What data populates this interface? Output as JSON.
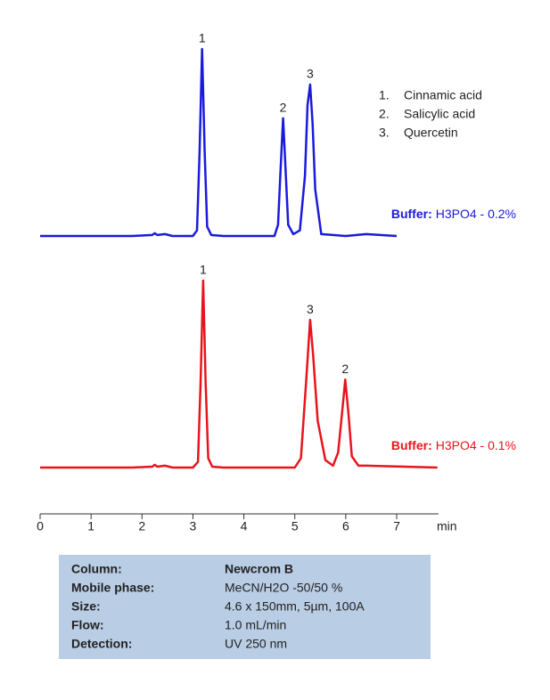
{
  "chart_data": {
    "type": "line",
    "xlabel": "min",
    "xlim": [
      0,
      7.8
    ],
    "xticks": [
      0,
      1,
      2,
      3,
      4,
      5,
      6,
      7
    ],
    "ylim": [
      0,
      100
    ],
    "legend": [
      {
        "number": "1.",
        "name": "Cinnamic acid"
      },
      {
        "number": "2.",
        "name": "Salicylic acid"
      },
      {
        "number": "3.",
        "name": "Quercetin"
      }
    ],
    "series": [
      {
        "buffer_label": "Buffer:",
        "name": "H3PO4 - 0.2%",
        "color": "#1a1adc",
        "x": [
          0,
          1.8,
          2.2,
          2.25,
          2.3,
          2.45,
          2.6,
          3.0,
          3.08,
          3.13,
          3.18,
          3.23,
          3.28,
          3.36,
          3.6,
          4.6,
          4.67,
          4.72,
          4.77,
          4.82,
          4.87,
          4.97,
          5.1,
          5.2,
          5.25,
          5.3,
          5.35,
          5.4,
          5.52,
          6.0,
          6.4,
          7.0
        ],
        "values": [
          0,
          0,
          0.5,
          1.5,
          0.5,
          1,
          0,
          0,
          3,
          45,
          100,
          45,
          5,
          0.5,
          0,
          0,
          6,
          35,
          63,
          35,
          6,
          1,
          3,
          32,
          70,
          81,
          60,
          25,
          1,
          0,
          1,
          0
        ],
        "peaks": [
          {
            "label": "1",
            "x": 3.18,
            "y": 100
          },
          {
            "label": "2",
            "x": 4.77,
            "y": 63
          },
          {
            "label": "3",
            "x": 5.3,
            "y": 81
          }
        ]
      },
      {
        "buffer_label": "Buffer:",
        "name": "H3PO4 - 0.1%",
        "color": "#e8141c",
        "x": [
          0,
          1.8,
          2.2,
          2.25,
          2.3,
          2.45,
          2.6,
          3.0,
          3.1,
          3.15,
          3.2,
          3.25,
          3.3,
          3.38,
          3.6,
          5.0,
          5.12,
          5.22,
          5.3,
          5.36,
          5.45,
          5.6,
          5.75,
          5.85,
          5.93,
          5.99,
          6.05,
          6.12,
          6.25,
          6.4,
          7.8
        ],
        "values": [
          0,
          0,
          0.5,
          1.5,
          0.5,
          1,
          0,
          0,
          3,
          45,
          100,
          45,
          5,
          0.5,
          0,
          0,
          5,
          45,
          79,
          60,
          25,
          4,
          1,
          8,
          30,
          47,
          30,
          6,
          1,
          1,
          0
        ],
        "peaks": [
          {
            "label": "1",
            "x": 3.2,
            "y": 100
          },
          {
            "label": "3",
            "x": 5.3,
            "y": 79
          },
          {
            "label": "2",
            "x": 5.99,
            "y": 47
          }
        ]
      }
    ],
    "info": [
      [
        "Column:",
        "Newcrom B"
      ],
      [
        "Mobile phase:",
        "MeCN/H2O -50/50 %"
      ],
      [
        "Size:",
        "4.6 x 150mm, 5µm, 100A"
      ],
      [
        "Flow:",
        "1.0 mL/min"
      ],
      [
        "Detection:",
        "UV 250 nm"
      ]
    ]
  }
}
